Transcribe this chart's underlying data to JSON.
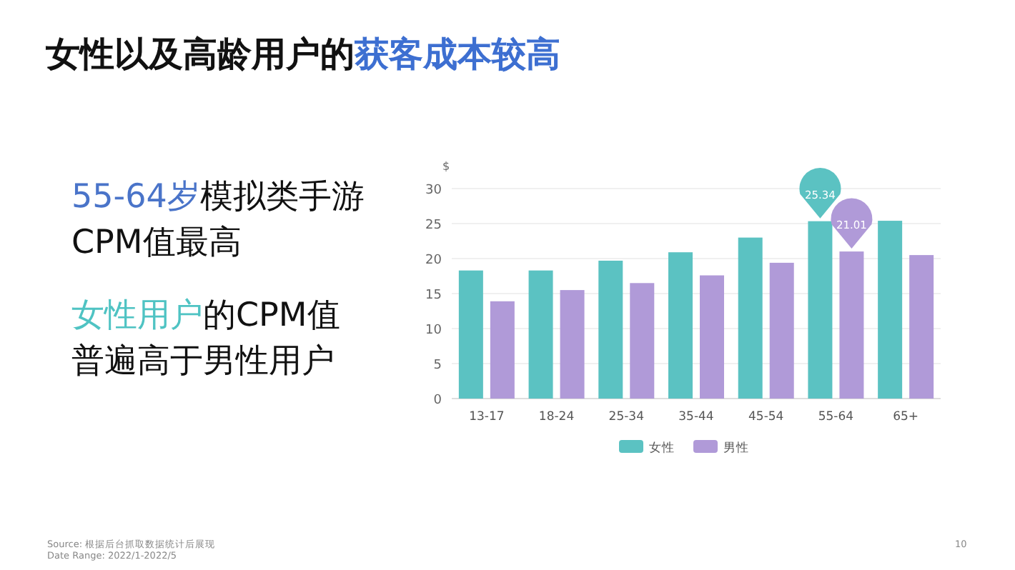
{
  "chart_data": {
    "type": "bar",
    "title": "女性以及高龄用户的获客成本较高",
    "ylabel": "$",
    "annotations": [
      "55-64岁模拟类手游CPM值最高",
      "女性用户的CPM值普遍高于男性用户",
      "Source: 根据后台抓取数据统计后展现",
      "Date Range: 2022/1-2022/5",
      "10"
    ],
    "categories": [
      "13-17",
      "18-24",
      "25-34",
      "35-44",
      "45-54",
      "55-64",
      "65+"
    ],
    "series": [
      {
        "name": "女性",
        "color": "#5bc2c2",
        "values": [
          18.3,
          18.3,
          19.7,
          20.9,
          23.0,
          25.34,
          25.4
        ],
        "value_labels": [
          null,
          null,
          null,
          null,
          null,
          "25.34",
          null
        ]
      },
      {
        "name": "男性",
        "color": "#b09ad8",
        "values": [
          13.9,
          15.5,
          16.5,
          17.6,
          19.4,
          21.01,
          20.5
        ],
        "value_labels": [
          null,
          null,
          null,
          null,
          null,
          "21.01",
          null
        ]
      }
    ],
    "ylim": [
      0,
      30
    ],
    "yticks": [
      0,
      5,
      10,
      15,
      20,
      25,
      30
    ],
    "grid": "y",
    "legend": "bottom"
  }
}
